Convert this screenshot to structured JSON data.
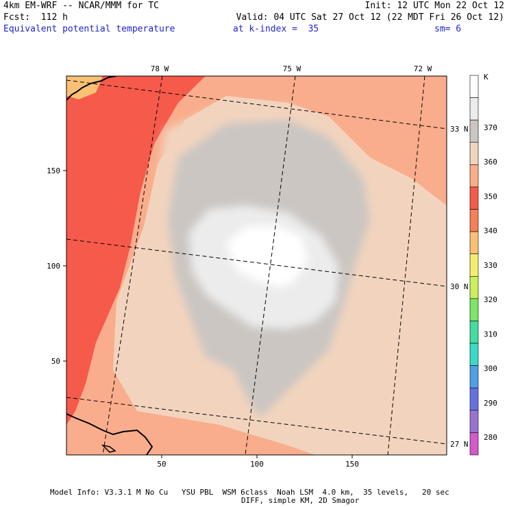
{
  "header": {
    "model_line": "4km EM-WRF -- NCAR/MMM for TC",
    "init": "Init: 12 UTC Mon 22 Oct 12",
    "fcst": "Fcst:  112 h",
    "valid": "Valid: 04 UTC Sat 27 Oct 12 (22 MDT Fri 26 Oct 12)",
    "field": "Equivalent potential temperature",
    "level": "at k-index =  35",
    "smooth": "sm= 6"
  },
  "axes": {
    "x_ticks": [
      "50",
      "100",
      "150"
    ],
    "y_ticks": [
      "50",
      "100",
      "150"
    ],
    "lon_labels": [
      "78 W",
      "75 W",
      "72 W"
    ],
    "lat_labels": [
      "33 N",
      "30 N",
      "27 N"
    ]
  },
  "colorbar": {
    "unit": "K",
    "labels": [
      "370",
      "360",
      "350",
      "340",
      "330",
      "320",
      "310",
      "300",
      "290",
      "280"
    ],
    "colors": [
      "#ffffff",
      "#ececec",
      "#cbc6c2",
      "#f2d4be",
      "#f9ad8c",
      "#f65a4b",
      "#f47f58",
      "#f9c175",
      "#f4ee70",
      "#cbef5c",
      "#7de567",
      "#43dca1",
      "#3ad9c8",
      "#4f9ee6",
      "#6672e0",
      "#9a73d0",
      "#d35ac9"
    ]
  },
  "footer": {
    "line1": "Model Info: V3.3.1 M No Cu   YSU PBL  WSM 6class  Noah LSM  4.0 km,  35 levels,   20 sec",
    "line2": "DIFF, simple KM, 2D Smagor"
  }
}
